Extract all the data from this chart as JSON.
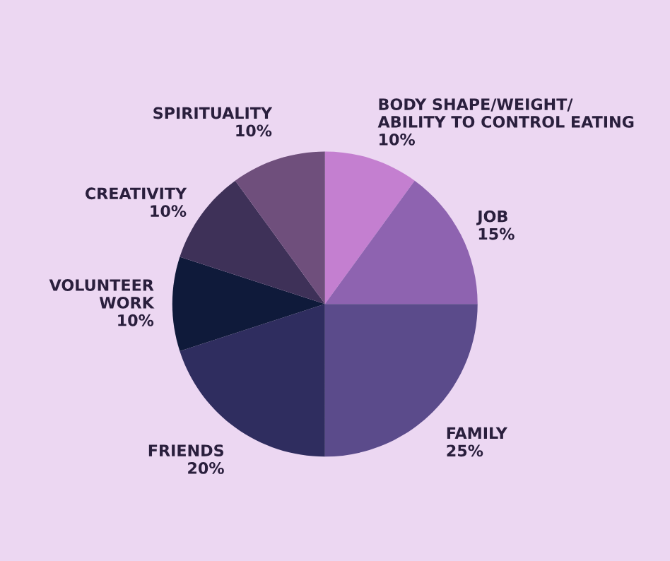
{
  "chart_data": {
    "type": "pie",
    "categories": [
      "BODY SHAPE/WEIGHT/\nABILITY TO CONTROL EATING",
      "JOB",
      "FAMILY",
      "FRIENDS",
      "VOLUNTEER\nWORK",
      "CREATIVITY",
      "SPIRITUALITY"
    ],
    "values": [
      10,
      15,
      25,
      20,
      10,
      10,
      10
    ],
    "value_labels": [
      "10%",
      "15%",
      "25%",
      "20%",
      "10%",
      "10%",
      "10%"
    ],
    "colors": [
      "#c47fd0",
      "#8e63b0",
      "#5b4b8b",
      "#2f2d5f",
      "#0f1a3a",
      "#3e3158",
      "#6f4f7c"
    ],
    "legend": false
  }
}
